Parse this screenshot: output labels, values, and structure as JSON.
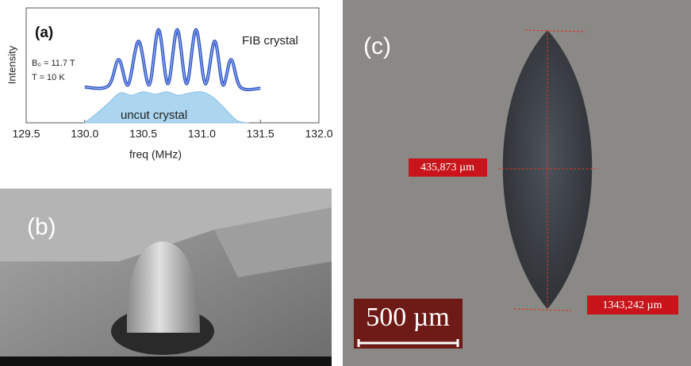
{
  "chart_data": {
    "type": "line",
    "panel_label": "(a)",
    "x_label": "freq (MHz)",
    "y_label": "Intensity",
    "annotations": [
      "B₀ = 11.7 T",
      "T = 10 K"
    ],
    "xlim": [
      129.5,
      132.0
    ],
    "xticks": [
      129.5,
      {
        "value": 130,
        "label": "130.0"
      },
      130.5,
      {
        "value": 131,
        "label": "131.0"
      },
      131.5,
      {
        "value": 132,
        "label": "132.0"
      }
    ],
    "ylim": [
      0,
      1
    ],
    "series": [
      {
        "name": "FIB crystal",
        "color": "#2f56c6",
        "kind": "line",
        "x": [
          130.0,
          130.2,
          130.29,
          130.37,
          130.46,
          130.55,
          130.63,
          130.71,
          130.79,
          130.87,
          130.95,
          131.03,
          131.11,
          131.18,
          131.25,
          131.33,
          131.5
        ],
        "values": [
          0.31,
          0.32,
          0.55,
          0.33,
          0.71,
          0.33,
          0.81,
          0.34,
          0.81,
          0.34,
          0.81,
          0.34,
          0.71,
          0.33,
          0.55,
          0.31,
          0.3
        ]
      },
      {
        "name": "uncut crystal",
        "color": "#acd6ef",
        "kind": "area",
        "x": [
          130.0,
          130.1,
          130.2,
          130.3,
          130.4,
          130.5,
          130.6,
          130.7,
          130.8,
          130.9,
          131.0,
          131.1,
          131.2,
          131.3,
          131.4
        ],
        "values": [
          0,
          0.08,
          0.17,
          0.26,
          0.24,
          0.27,
          0.25,
          0.27,
          0.24,
          0.26,
          0.27,
          0.22,
          0.12,
          0.02,
          0
        ]
      }
    ]
  },
  "panel_b": {
    "label": "(b)"
  },
  "panel_c": {
    "label": "(c)",
    "width_label": "435,873 µm",
    "length_label": "1343,242 µm",
    "scale_bar": "500 µm"
  }
}
